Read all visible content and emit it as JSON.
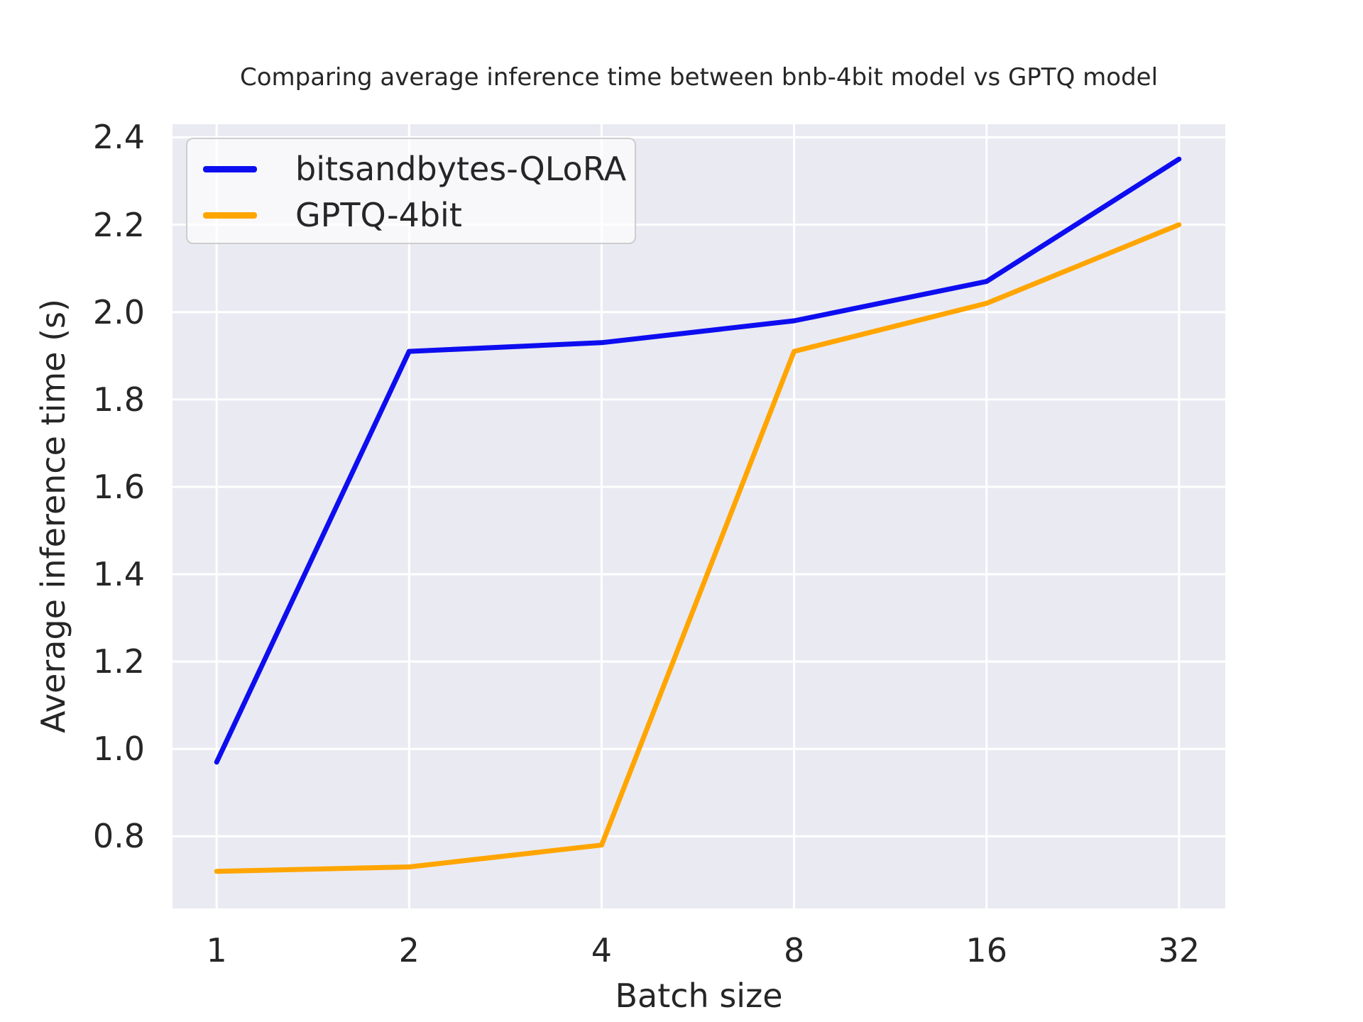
{
  "chart_data": {
    "type": "line",
    "title": "Comparing average inference time between bnb-4bit model vs GPTQ model",
    "xlabel": "Batch size",
    "ylabel": "Average inference time (s)",
    "x": [
      1,
      2,
      4,
      8,
      16,
      32
    ],
    "xscale": "log2",
    "series": [
      {
        "name": "bitsandbytes-QLoRA",
        "color": "#0d0df0",
        "values": [
          0.97,
          1.91,
          1.93,
          1.98,
          2.07,
          2.35
        ]
      },
      {
        "name": "GPTQ-4bit",
        "color": "#ffa500",
        "values": [
          0.72,
          0.73,
          0.78,
          1.91,
          2.02,
          2.2
        ]
      }
    ],
    "xtick_labels": [
      "1",
      "2",
      "4",
      "8",
      "16",
      "32"
    ],
    "ytick_labels": [
      "0.8",
      "1.0",
      "1.2",
      "1.4",
      "1.6",
      "1.8",
      "2.0",
      "2.2",
      "2.4"
    ],
    "ytick_values": [
      0.8,
      1.0,
      1.2,
      1.4,
      1.6,
      1.8,
      2.0,
      2.2,
      2.4
    ],
    "ylim": [
      0.635,
      2.43
    ],
    "xlim": [
      0.853,
      37.8
    ],
    "grid": true,
    "legend_position": "upper left",
    "plot_bg": "#eaeaf2",
    "grid_color": "#ffffff",
    "text_color": "#262626",
    "line_width": 7
  }
}
